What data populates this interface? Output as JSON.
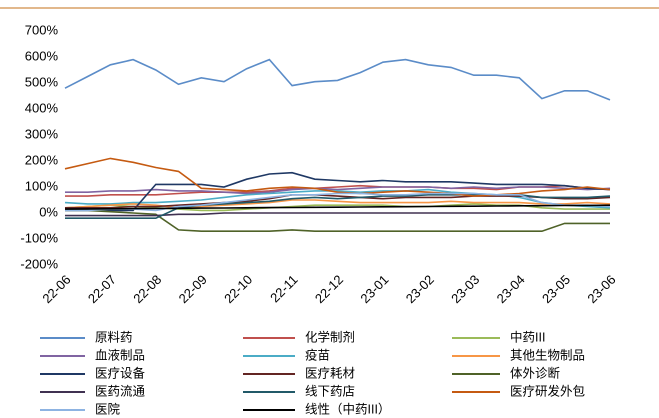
{
  "chart_data": {
    "type": "line",
    "categories": [
      "22-06",
      null,
      "22-07",
      null,
      "22-08",
      null,
      "22-09",
      null,
      "22-10",
      null,
      "22-11",
      null,
      "22-12",
      null,
      "23-01",
      null,
      "23-02",
      null,
      "23-03",
      null,
      "23-04",
      null,
      "23-05",
      null,
      "23-06"
    ],
    "ylim": [
      -200,
      700
    ],
    "yticks": [
      {
        "value": -200,
        "label": "-200%"
      },
      {
        "value": -100,
        "label": "-100%"
      },
      {
        "value": 0,
        "label": "0%"
      },
      {
        "value": 100,
        "label": "100%"
      },
      {
        "value": 200,
        "label": "200%"
      },
      {
        "value": 300,
        "label": "300%"
      },
      {
        "value": 400,
        "label": "400%"
      },
      {
        "value": 500,
        "label": "500%"
      },
      {
        "value": 600,
        "label": "600%"
      },
      {
        "value": 700,
        "label": "700%"
      }
    ],
    "grid": false,
    "series": [
      {
        "name": "原料药",
        "color": "#5b8cc8",
        "values": [
          480,
          525,
          570,
          590,
          550,
          495,
          520,
          505,
          555,
          590,
          490,
          505,
          510,
          540,
          580,
          590,
          570,
          560,
          530,
          530,
          520,
          440,
          470,
          470,
          435
        ]
      },
      {
        "name": "化学制剂",
        "color": "#c0504d",
        "values": [
          65,
          65,
          70,
          70,
          70,
          75,
          80,
          80,
          80,
          85,
          95,
          95,
          100,
          105,
          100,
          100,
          100,
          95,
          95,
          90,
          100,
          100,
          105,
          95,
          90
        ]
      },
      {
        "name": "中药III",
        "color": "#9bbb59",
        "values": [
          20,
          25,
          30,
          25,
          20,
          15,
          10,
          10,
          15,
          20,
          25,
          30,
          30,
          30,
          30,
          25,
          25,
          30,
          35,
          30,
          30,
          20,
          15,
          15,
          15
        ]
      },
      {
        "name": "血液制品",
        "color": "#8064a2",
        "values": [
          80,
          80,
          85,
          85,
          90,
          85,
          85,
          80,
          75,
          80,
          90,
          95,
          90,
          95,
          100,
          100,
          100,
          95,
          100,
          95,
          100,
          100,
          95,
          90,
          95
        ]
      },
      {
        "name": "疫苗",
        "color": "#4bacc6",
        "values": [
          40,
          35,
          35,
          40,
          40,
          45,
          50,
          60,
          70,
          75,
          80,
          85,
          85,
          80,
          85,
          85,
          90,
          80,
          75,
          70,
          60,
          40,
          30,
          25,
          20
        ]
      },
      {
        "name": "其他生物制品",
        "color": "#f79646",
        "values": [
          20,
          25,
          30,
          35,
          30,
          20,
          25,
          30,
          35,
          40,
          50,
          50,
          45,
          40,
          40,
          40,
          40,
          45,
          40,
          40,
          40,
          35,
          35,
          40,
          35
        ]
      },
      {
        "name": "医疗设备",
        "color": "#1f3864",
        "values": [
          10,
          10,
          10,
          10,
          110,
          110,
          110,
          100,
          130,
          150,
          155,
          130,
          125,
          120,
          125,
          120,
          120,
          120,
          115,
          110,
          110,
          110,
          105,
          95,
          90
        ]
      },
      {
        "name": "医疗耗材",
        "color": "#632523",
        "values": [
          20,
          20,
          20,
          25,
          25,
          30,
          35,
          40,
          45,
          55,
          70,
          70,
          65,
          60,
          55,
          60,
          60,
          60,
          65,
          65,
          65,
          60,
          55,
          55,
          60
        ]
      },
      {
        "name": "体外诊断",
        "color": "#4f6228",
        "values": [
          10,
          10,
          5,
          0,
          -5,
          -65,
          -70,
          -70,
          -70,
          -70,
          -65,
          -70,
          -70,
          -70,
          -70,
          -70,
          -70,
          -70,
          -70,
          -70,
          -70,
          -70,
          -40,
          -40,
          -40
        ]
      },
      {
        "name": "医药流通",
        "color": "#403151",
        "values": [
          -10,
          -10,
          -10,
          -10,
          -10,
          -5,
          -5,
          0,
          0,
          0,
          0,
          0,
          0,
          0,
          0,
          0,
          0,
          0,
          0,
          0,
          0,
          0,
          0,
          0,
          0
        ]
      },
      {
        "name": "线下药店",
        "color": "#215968",
        "values": [
          -20,
          -20,
          -20,
          -20,
          -20,
          20,
          30,
          35,
          40,
          45,
          55,
          60,
          55,
          60,
          65,
          65,
          70,
          70,
          70,
          70,
          70,
          60,
          60,
          60,
          65
        ]
      },
      {
        "name": "医疗研发外包",
        "color": "#c55a11",
        "values": [
          170,
          190,
          210,
          195,
          175,
          160,
          95,
          90,
          85,
          95,
          100,
          95,
          80,
          75,
          80,
          85,
          80,
          75,
          65,
          70,
          75,
          85,
          90,
          100,
          90
        ]
      },
      {
        "name": "医院",
        "color": "#8db3e2",
        "values": [
          10,
          10,
          15,
          15,
          10,
          25,
          30,
          40,
          50,
          60,
          70,
          70,
          75,
          75,
          70,
          70,
          75,
          75,
          75,
          70,
          70,
          40,
          30,
          30,
          25
        ]
      },
      {
        "name": "线性（中药III）",
        "color": "#000000",
        "values": [
          15,
          15.6,
          16.3,
          16.9,
          17.5,
          18.1,
          18.8,
          19.4,
          20,
          20.6,
          21.3,
          21.9,
          22.5,
          23.1,
          23.8,
          24.4,
          25,
          25.6,
          26.3,
          26.9,
          27.5,
          28.1,
          28.8,
          29.4,
          30
        ]
      }
    ]
  }
}
